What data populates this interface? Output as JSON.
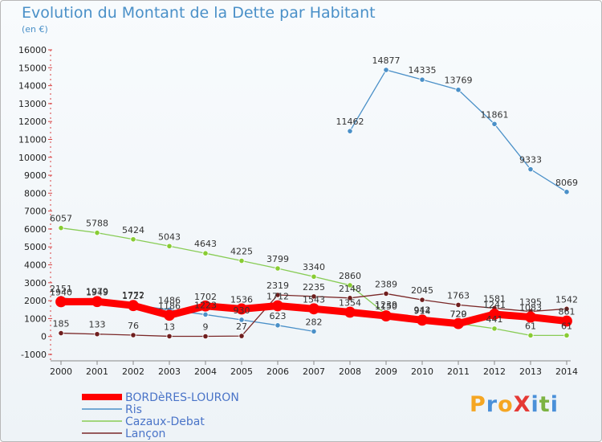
{
  "header": {
    "title": "Evolution du Montant de la Dette par Habitant",
    "subtitle": "(en €)"
  },
  "brand": {
    "text": "ProXiti",
    "letters": [
      {
        "ch": "P",
        "color": "#f5a623"
      },
      {
        "ch": "r",
        "color": "#4a90d9"
      },
      {
        "ch": "o",
        "color": "#f5a623"
      },
      {
        "ch": "X",
        "color": "#e53935"
      },
      {
        "ch": "i",
        "color": "#4a90d9"
      },
      {
        "ch": "t",
        "color": "#7cb342"
      },
      {
        "ch": "i",
        "color": "#4a90d9"
      }
    ]
  },
  "chart_data": {
    "type": "line",
    "title": "Evolution du Montant de la Dette par Habitant",
    "subtitle": "(en €)",
    "x": [
      "2000",
      "2001",
      "2002",
      "2003",
      "2004",
      "2005",
      "2006",
      "2007",
      "2008",
      "2009",
      "2010",
      "2011",
      "2012",
      "2013",
      "2014"
    ],
    "ylim": [
      -1000,
      16000
    ],
    "yticks": [
      -1000,
      0,
      1000,
      2000,
      3000,
      4000,
      5000,
      6000,
      7000,
      8000,
      9000,
      10000,
      11000,
      12000,
      13000,
      14000,
      15000,
      16000
    ],
    "grid": false,
    "legend_position": "bottom-left",
    "series": [
      {
        "name": "BORDèRES-LOURON",
        "color": "#ff0000",
        "marker_color": "#ff0000",
        "emphasis": true,
        "values": [
          1940,
          1949,
          1727,
          1186,
          1702,
          1536,
          1712,
          1543,
          1354,
          1150,
          914,
          720,
          1241,
          1083,
          861
        ],
        "labels": [
          "1940",
          "1949",
          "1727",
          "1186",
          "1702",
          "1536",
          "1712",
          "1543",
          "1354",
          "1150",
          "914",
          "720",
          "1241",
          "1083",
          "861"
        ]
      },
      {
        "name": "Ris",
        "color": "#4a90c8",
        "marker_color": "#4a90c8",
        "emphasis": false,
        "values": [
          2151,
          1979,
          1772,
          1486,
          1223,
          930,
          623,
          282,
          11462,
          14877,
          14335,
          13769,
          11861,
          9333,
          8069
        ],
        "labels": [
          "2151",
          "1979",
          "1772",
          "1486",
          "1223",
          "930",
          "623",
          "282",
          "11462",
          "14877",
          "14335",
          "13769",
          "11861",
          "9333",
          "8069"
        ]
      },
      {
        "name": "Cazaux-Debat",
        "color": "#88cc55",
        "marker_color": "#88cc33",
        "emphasis": false,
        "values": [
          6057,
          5788,
          5424,
          5043,
          4643,
          4225,
          3799,
          3340,
          2860,
          1239,
          942,
          729,
          441,
          61,
          61
        ],
        "labels": [
          "6057",
          "5788",
          "5424",
          "5043",
          "4643",
          "4225",
          "3799",
          "3340",
          "2860",
          "1239",
          "942",
          "729",
          "441",
          "61",
          "61"
        ]
      },
      {
        "name": "Lançon",
        "color": "#7a2828",
        "marker_color": "#6e1e1e",
        "emphasis": false,
        "values": [
          185,
          133,
          76,
          13,
          9,
          27,
          2319,
          2235,
          2148,
          2389,
          2045,
          1763,
          1581,
          1395,
          1542
        ],
        "labels": [
          "185",
          "133",
          "76",
          "13",
          "9",
          "27",
          "2319",
          "2235",
          "2148",
          "2389",
          "2045",
          "1763",
          "1581",
          "1395",
          "1542"
        ]
      }
    ]
  }
}
